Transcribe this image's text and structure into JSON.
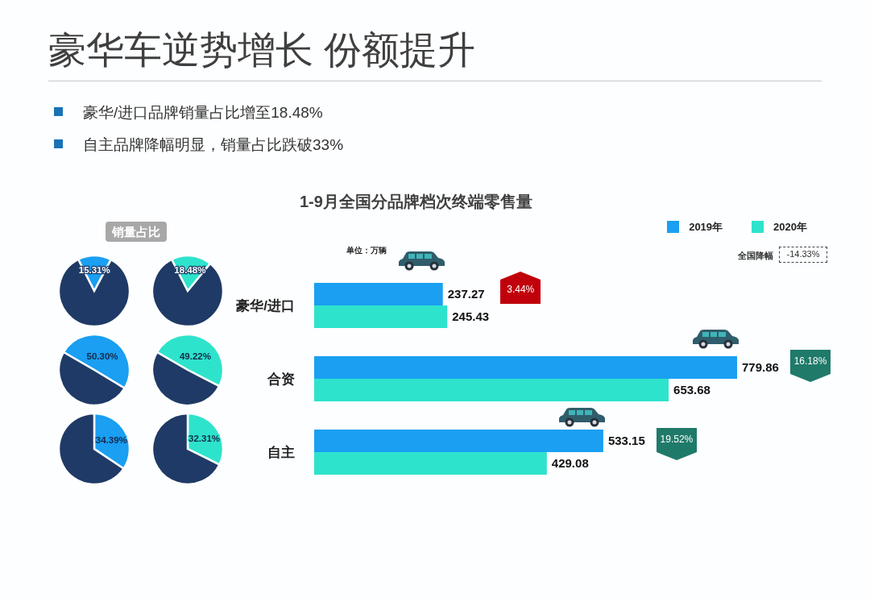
{
  "chart_data": [
    {
      "type": "other",
      "title": "豪华车逆势增长 份额提升",
      "annotations": [
        "豪华/进口品牌销量占比增至18.48%",
        "自主品牌降幅明显，销量占比跌破33%",
        "销量占比"
      ]
    },
    {
      "type": "pie",
      "categories": [
        null,
        null
      ],
      "values": [
        15.31,
        84.69
      ],
      "colors": [
        "#1a9ff2",
        "#1f3a66"
      ],
      "value_labels": [
        "15.31%",
        null
      ]
    },
    {
      "type": "pie",
      "categories": [
        null,
        null
      ],
      "values": [
        18.48,
        81.52
      ],
      "colors": [
        "#2ee3cc",
        "#1f3a66"
      ],
      "value_labels": [
        "18.48%",
        null
      ]
    },
    {
      "type": "pie",
      "categories": [
        null,
        null
      ],
      "values": [
        50.3,
        49.7
      ],
      "colors": [
        "#1a9ff2",
        "#1f3a66"
      ],
      "value_labels": [
        "50.30%",
        null
      ]
    },
    {
      "type": "pie",
      "categories": [
        null,
        null
      ],
      "values": [
        49.22,
        50.78
      ],
      "colors": [
        "#2ee3cc",
        "#1f3a66"
      ],
      "value_labels": [
        "49.22%",
        null
      ]
    },
    {
      "type": "pie",
      "categories": [
        null,
        null
      ],
      "values": [
        34.39,
        65.61
      ],
      "colors": [
        "#1a9ff2",
        "#1f3a66"
      ],
      "value_labels": [
        "34.39%",
        null
      ]
    },
    {
      "type": "pie",
      "categories": [
        null,
        null
      ],
      "values": [
        32.31,
        67.69
      ],
      "colors": [
        "#2ee3cc",
        "#1f3a66"
      ],
      "value_labels": [
        "32.31%",
        null
      ]
    },
    {
      "type": "bar",
      "orientation": "horizontal",
      "title": "1-9月全国分品牌档次终端零售量",
      "categories": [
        "豪华/进口",
        "合资",
        "自主"
      ],
      "series": [
        {
          "name": "2019年",
          "color": "#1a9ff2",
          "values": [
            237.27,
            779.86,
            533.15
          ]
        },
        {
          "name": "2020年",
          "color": "#2ee3cc",
          "values": [
            245.43,
            653.68,
            429.08
          ]
        }
      ],
      "data_labels": true,
      "legend": "top right",
      "annotations": [
        "单位：万辆",
        "全国降幅",
        "-14.33%",
        "3.44%",
        "16.18%",
        "19.52%"
      ]
    }
  ]
}
